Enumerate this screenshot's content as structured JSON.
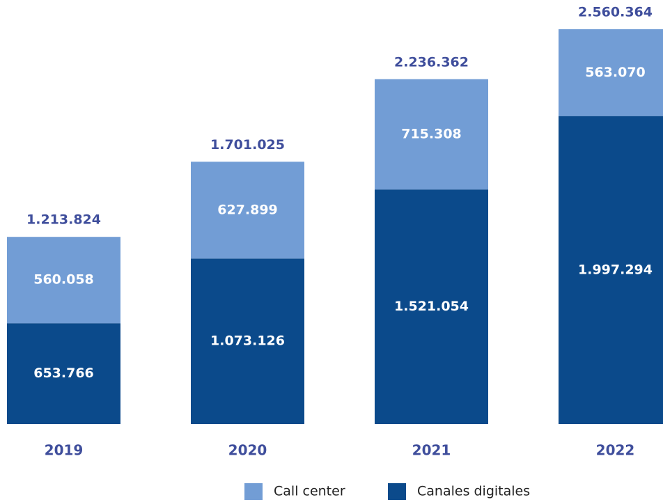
{
  "chart_data": {
    "type": "stacked_bar",
    "categories": [
      "2019",
      "2020",
      "2021",
      "2022"
    ],
    "series": [
      {
        "name": "Canales digitales",
        "color": "#0b4a8b",
        "values": [
          653766,
          1073126,
          1521054,
          1997294
        ],
        "value_labels": [
          "653.766",
          "1.073.126",
          "1.521.054",
          "1.997.294"
        ]
      },
      {
        "name": "Call center",
        "color": "#729dd5",
        "values": [
          560058,
          627899,
          715308,
          563070
        ],
        "value_labels": [
          "560.058",
          "627.899",
          "715.308",
          "563.070"
        ]
      }
    ],
    "totals": {
      "values": [
        1213824,
        1701025,
        2236362,
        2560364
      ],
      "value_labels": [
        "1.213.824",
        "1.701.025",
        "2.236.362",
        "2.560.364"
      ]
    },
    "legend": "bottom"
  }
}
